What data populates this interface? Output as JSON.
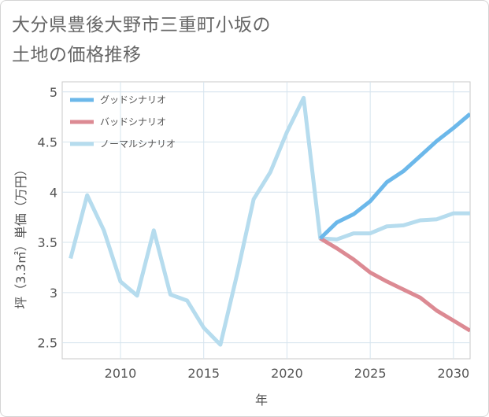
{
  "title_lines": [
    "大分県豊後大野市三重町小坂の",
    "土地の価格推移"
  ],
  "chart_data": {
    "type": "line",
    "title": "大分県豊後大野市三重町小坂の土地の価格推移",
    "xlabel": "年",
    "ylabel": "坪（3.3㎡）単価（万円）",
    "xlim": [
      2006.5,
      2031
    ],
    "ylim": [
      2.34,
      5.1
    ],
    "x_ticks": [
      2010,
      2015,
      2020,
      2025,
      2030
    ],
    "y_ticks": [
      2.5,
      3,
      3.5,
      4,
      4.5,
      5
    ],
    "x_tick_labels": [
      "2010",
      "2015",
      "2020",
      "2025",
      "2030"
    ],
    "y_tick_labels": [
      "2.5",
      "3",
      "3.5",
      "4",
      "4.5",
      "5"
    ],
    "grid": true,
    "legend_position": "top-left",
    "series": [
      {
        "name": "グッドシナリオ",
        "color": "#6cb8ea",
        "x": [
          2022,
          2023,
          2024,
          2025,
          2026,
          2027,
          2028,
          2029,
          2030,
          2031
        ],
        "values": [
          3.54,
          3.7,
          3.78,
          3.91,
          4.1,
          4.21,
          4.36,
          4.51,
          4.64,
          4.78
        ]
      },
      {
        "name": "バッドシナリオ",
        "color": "#dc8a93",
        "x": [
          2022,
          2023,
          2024,
          2025,
          2026,
          2027,
          2028,
          2029,
          2030,
          2031
        ],
        "values": [
          3.54,
          3.44,
          3.33,
          3.2,
          3.11,
          3.03,
          2.95,
          2.82,
          2.72,
          2.62
        ]
      },
      {
        "name": "ノーマルシナリオ",
        "color": "#b6dcee",
        "x": [
          2007,
          2008,
          2009,
          2010,
          2011,
          2012,
          2013,
          2014,
          2015,
          2016,
          2017,
          2018,
          2019,
          2020,
          2021,
          2022,
          2023,
          2024,
          2025,
          2026,
          2027,
          2028,
          2029,
          2030,
          2031
        ],
        "values": [
          3.34,
          3.97,
          3.62,
          3.11,
          2.97,
          3.62,
          2.98,
          2.92,
          2.65,
          2.48,
          3.18,
          3.93,
          4.2,
          4.6,
          4.94,
          3.54,
          3.53,
          3.59,
          3.59,
          3.66,
          3.67,
          3.72,
          3.73,
          3.79,
          3.79
        ]
      }
    ]
  }
}
